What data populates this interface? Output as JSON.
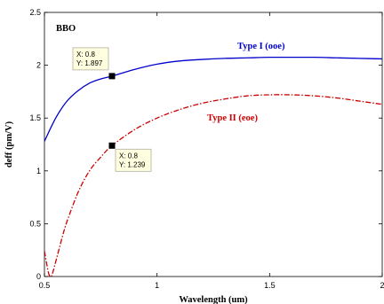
{
  "chart_data": {
    "type": "line",
    "title": "",
    "xlabel": "Wavelength (um)",
    "ylabel": "deff (pm/V)",
    "xlim": [
      0.5,
      2
    ],
    "ylim": [
      0,
      2.5
    ],
    "grid": false,
    "xticks": [
      "0.5",
      "1",
      "1.5",
      "2"
    ],
    "yticks": [
      "0",
      "0.5",
      "1",
      "1.5",
      "2",
      "2.5"
    ],
    "crystal_label": "BBO",
    "series": [
      {
        "name": "Type I (ooe)",
        "color": "#0000cc",
        "style": "solid",
        "x": [
          0.5,
          0.55,
          0.6,
          0.65,
          0.7,
          0.75,
          0.8,
          0.9,
          1.0,
          1.1,
          1.2,
          1.3,
          1.4,
          1.5,
          1.6,
          1.7,
          1.8,
          1.9,
          2.0
        ],
        "y": [
          1.28,
          1.5,
          1.66,
          1.76,
          1.83,
          1.87,
          1.897,
          1.96,
          2.01,
          2.04,
          2.055,
          2.065,
          2.07,
          2.075,
          2.075,
          2.075,
          2.07,
          2.065,
          2.06
        ]
      },
      {
        "name": "Type II (eoe)",
        "color": "#cc0000",
        "style": "dashdot",
        "x": [
          0.5,
          0.51,
          0.52,
          0.53,
          0.54,
          0.56,
          0.58,
          0.6,
          0.65,
          0.7,
          0.75,
          0.8,
          0.9,
          1.0,
          1.1,
          1.2,
          1.3,
          1.4,
          1.5,
          1.6,
          1.7,
          1.8,
          1.9,
          2.0
        ],
        "y": [
          0.24,
          0.12,
          0.02,
          0.0,
          0.06,
          0.22,
          0.38,
          0.52,
          0.8,
          1.0,
          1.13,
          1.239,
          1.39,
          1.5,
          1.58,
          1.64,
          1.68,
          1.71,
          1.72,
          1.72,
          1.71,
          1.69,
          1.66,
          1.63
        ]
      }
    ],
    "datatips": [
      {
        "series": "Type I (ooe)",
        "x_text": "X: 0.8",
        "y_text": "Y: 1.897",
        "x": 0.8,
        "y": 1.897
      },
      {
        "series": "Type II (eoe)",
        "x_text": "X: 0.8",
        "y_text": "Y: 1.239",
        "x": 0.8,
        "y": 1.239
      }
    ]
  }
}
